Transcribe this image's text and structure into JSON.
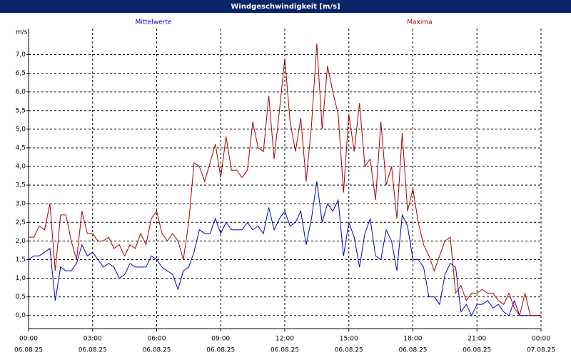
{
  "chart_data": {
    "type": "line",
    "title": "Windgeschwindigkeit [m/s]",
    "ylabel": "m/s",
    "x": [
      0,
      0.25,
      0.5,
      0.75,
      1,
      1.25,
      1.5,
      1.75,
      2,
      2.25,
      2.5,
      2.75,
      3,
      3.25,
      3.5,
      3.75,
      4,
      4.25,
      4.5,
      4.75,
      5,
      5.25,
      5.5,
      5.75,
      6,
      6.25,
      6.5,
      6.75,
      7,
      7.25,
      7.5,
      7.75,
      8,
      8.25,
      8.5,
      8.75,
      9,
      9.25,
      9.5,
      9.75,
      10,
      10.25,
      10.5,
      10.75,
      11,
      11.25,
      11.5,
      11.75,
      12,
      12.25,
      12.5,
      12.75,
      13,
      13.25,
      13.5,
      13.75,
      14,
      14.25,
      14.5,
      14.75,
      15,
      15.25,
      15.5,
      15.75,
      16,
      16.25,
      16.5,
      16.75,
      17,
      17.25,
      17.5,
      17.75,
      18,
      18.25,
      18.5,
      18.75,
      19,
      19.25,
      19.5,
      19.75,
      20,
      20.25,
      20.5,
      20.75,
      21,
      21.25,
      21.5,
      21.75,
      22,
      22.25,
      22.5,
      22.75,
      23,
      23.25,
      23.5,
      23.75,
      24
    ],
    "series": [
      {
        "name": "Mittelwerte",
        "color": "#0000cc",
        "values": [
          1.5,
          1.6,
          1.6,
          1.7,
          1.8,
          0.4,
          1.3,
          1.2,
          1.2,
          1.4,
          1.9,
          1.6,
          1.7,
          1.5,
          1.3,
          1.4,
          1.3,
          1.0,
          1.1,
          1.4,
          1.3,
          1.3,
          1.3,
          1.6,
          1.5,
          1.3,
          1.2,
          1.1,
          0.7,
          1.2,
          1.3,
          1.7,
          2.3,
          2.2,
          2.2,
          2.6,
          2.2,
          2.5,
          2.3,
          2.3,
          2.3,
          2.5,
          2.3,
          2.4,
          2.2,
          2.9,
          2.3,
          2.6,
          2.8,
          2.4,
          2.5,
          2.8,
          1.9,
          2.6,
          3.6,
          2.5,
          3.0,
          2.8,
          3.1,
          1.6,
          2.5,
          2.1,
          1.3,
          2.2,
          2.6,
          1.6,
          1.5,
          2.3,
          2.0,
          1.2,
          2.7,
          2.4,
          1.5,
          1.5,
          1.3,
          0.5,
          0.5,
          0.3,
          1.1,
          1.4,
          1.3,
          0.1,
          0.3,
          0.0,
          0.3,
          0.3,
          0.4,
          0.2,
          0.3,
          0.1,
          0.0,
          0.4,
          0.0,
          0.0,
          0.0,
          0.0,
          0.0
        ]
      },
      {
        "name": "Maxima",
        "color": "#aa0000",
        "values": [
          2.1,
          2.1,
          2.4,
          2.3,
          3.0,
          1.2,
          2.7,
          2.7,
          2.0,
          1.5,
          2.8,
          2.2,
          2.2,
          2.0,
          2.0,
          2.1,
          1.8,
          1.9,
          1.6,
          1.9,
          1.8,
          2.2,
          1.9,
          2.6,
          2.8,
          2.2,
          2.0,
          2.2,
          2.0,
          1.5,
          2.5,
          4.1,
          4.0,
          3.6,
          4.1,
          4.6,
          3.7,
          4.8,
          3.9,
          3.9,
          3.7,
          3.9,
          5.2,
          4.5,
          4.4,
          5.9,
          4.2,
          5.5,
          6.9,
          5.2,
          4.4,
          5.3,
          3.6,
          5.1,
          7.3,
          5.0,
          6.7,
          6.0,
          5.4,
          3.3,
          5.4,
          4.4,
          5.7,
          4.0,
          4.2,
          3.1,
          5.2,
          3.5,
          4.0,
          2.6,
          4.9,
          2.8,
          3.4,
          2.5,
          1.9,
          1.6,
          1.2,
          1.6,
          2.0,
          2.1,
          0.6,
          0.8,
          0.4,
          0.6,
          0.6,
          0.7,
          0.6,
          0.6,
          0.4,
          0.3,
          0.6,
          0.2,
          0.0,
          0.6,
          0.0,
          0.0,
          0.0
        ]
      }
    ],
    "xlim": [
      0,
      24
    ],
    "xticks": [
      {
        "value": 0,
        "label": "00:00"
      },
      {
        "value": 3,
        "label": "03:00"
      },
      {
        "value": 6,
        "label": "06:00"
      },
      {
        "value": 9,
        "label": "09:00"
      },
      {
        "value": 12,
        "label": "12:00"
      },
      {
        "value": 15,
        "label": "15:00"
      },
      {
        "value": 18,
        "label": "18:00"
      },
      {
        "value": 21,
        "label": "21:00"
      },
      {
        "value": 24,
        "label": "00:00"
      }
    ],
    "xtick_dates": [
      "06.08.25",
      "06.08.25",
      "06.08.25",
      "06.08.25",
      "06.08.25",
      "06.08.25",
      "06.08.25",
      "06.08.25",
      "07.08.25"
    ],
    "ylim": [
      -0.35,
      7.7
    ],
    "yticks": [
      {
        "value": 0,
        "label": "0,0"
      },
      {
        "value": 0.5,
        "label": "0,5"
      },
      {
        "value": 1,
        "label": "1,0"
      },
      {
        "value": 1.5,
        "label": "1,5"
      },
      {
        "value": 2,
        "label": "2,0"
      },
      {
        "value": 2.5,
        "label": "2,5"
      },
      {
        "value": 3,
        "label": "3,0"
      },
      {
        "value": 3.5,
        "label": "3,5"
      },
      {
        "value": 4,
        "label": "4,0"
      },
      {
        "value": 4.5,
        "label": "4,5"
      },
      {
        "value": 5,
        "label": "5,0"
      },
      {
        "value": 5.5,
        "label": "5,5"
      },
      {
        "value": 6,
        "label": "6,0"
      },
      {
        "value": 6.5,
        "label": "6,5"
      },
      {
        "value": 7,
        "label": "7,0"
      }
    ],
    "grid": true
  }
}
